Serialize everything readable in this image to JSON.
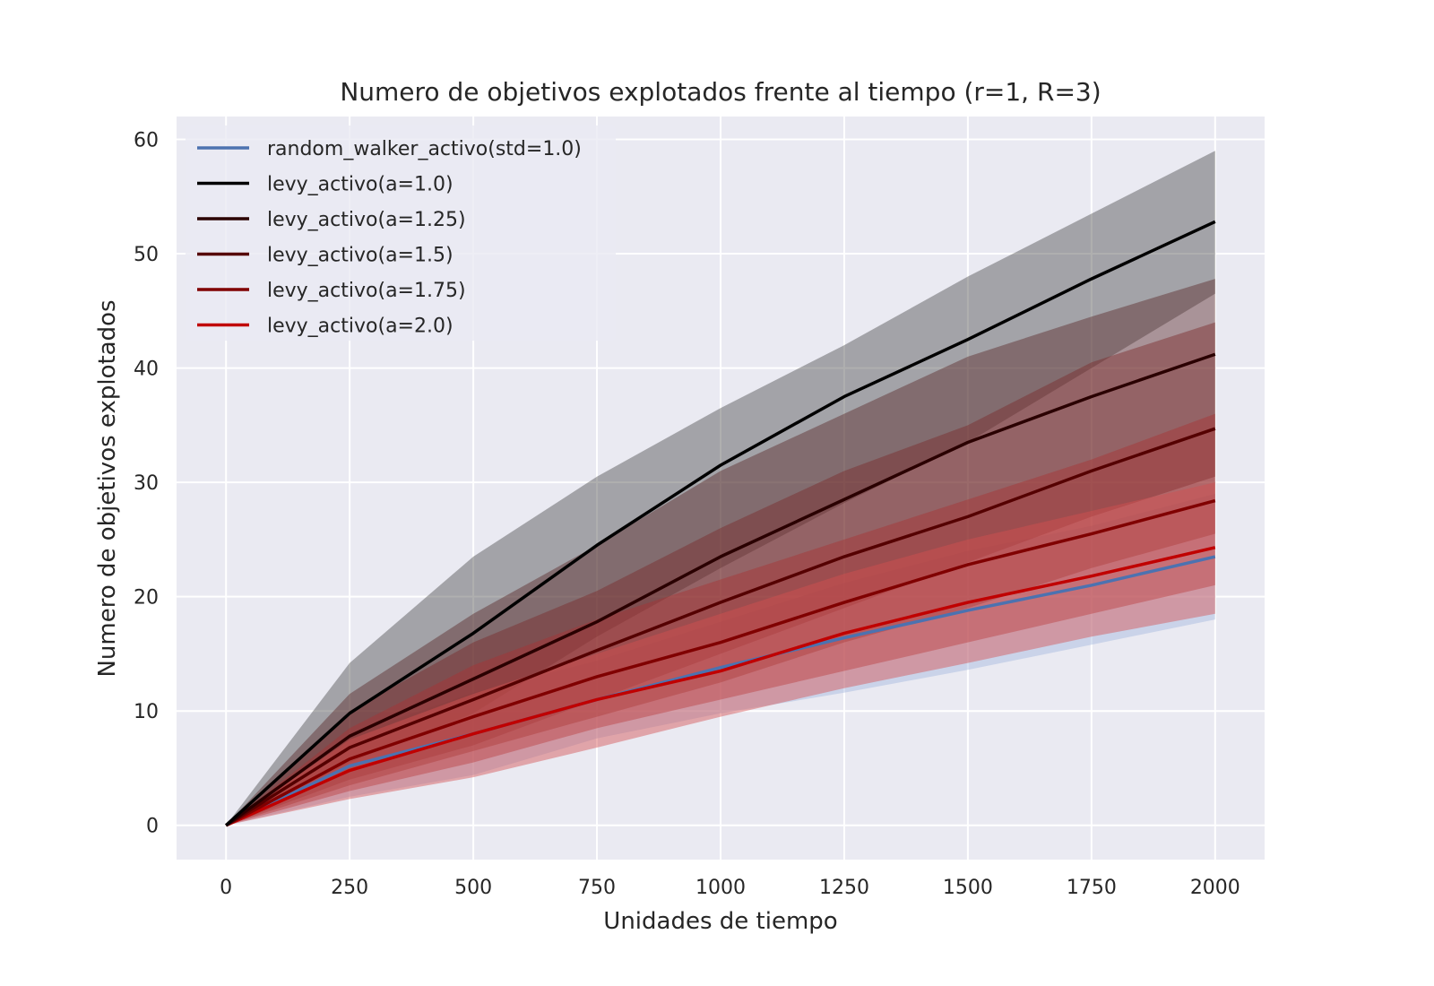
{
  "chart_data": {
    "type": "line",
    "title": "Numero de objetivos explotados frente al tiempo (r=1, R=3)",
    "xlabel": "Unidades de tiempo",
    "ylabel": "Numero de objetivos explotados",
    "xlim": [
      -100,
      2100
    ],
    "ylim": [
      -3,
      62
    ],
    "xticks": [
      0,
      250,
      500,
      750,
      1000,
      1250,
      1500,
      1750,
      2000
    ],
    "yticks": [
      0,
      10,
      20,
      30,
      40,
      50,
      60
    ],
    "grid": true,
    "legend_position": "upper-left",
    "plot_background": "#eaeaf2",
    "x": [
      0,
      250,
      500,
      750,
      1000,
      1250,
      1500,
      1750,
      2000
    ],
    "series": [
      {
        "name": "random_walker_activo(std=1.0)",
        "color": "#4c72b0",
        "band_color": "#a4b9dd",
        "values": [
          0,
          5.2,
          8.0,
          11.0,
          13.8,
          16.4,
          18.8,
          21.0,
          23.5
        ],
        "lower": [
          0,
          2.5,
          4.4,
          7.6,
          9.8,
          11.6,
          13.6,
          15.8,
          18.0
        ],
        "upper": [
          0,
          7.9,
          11.6,
          14.4,
          17.8,
          21.2,
          24.0,
          26.2,
          29.0
        ]
      },
      {
        "name": "levy_activo(a=1.0)",
        "color": "#000000",
        "band_color": "#4d4d4d",
        "values": [
          0,
          9.8,
          16.8,
          24.5,
          31.5,
          37.5,
          42.5,
          47.8,
          52.8
        ],
        "lower": [
          0,
          5.5,
          9.8,
          16.5,
          22.5,
          28.2,
          33.5,
          40.0,
          46.5
        ],
        "upper": [
          0,
          14.2,
          23.5,
          30.5,
          36.5,
          42.0,
          48.0,
          53.5,
          59.0
        ]
      },
      {
        "name": "levy_activo(a=1.25)",
        "color": "#2a0000",
        "band_color": "#5a2a2a",
        "values": [
          0,
          7.8,
          12.8,
          17.8,
          23.5,
          28.5,
          33.5,
          37.5,
          41.2
        ],
        "lower": [
          0,
          4.0,
          7.0,
          11.0,
          15.0,
          19.0,
          23.0,
          27.0,
          30.5
        ],
        "upper": [
          0,
          11.5,
          18.5,
          24.5,
          31.0,
          36.0,
          41.0,
          44.5,
          47.8
        ]
      },
      {
        "name": "levy_activo(a=1.5)",
        "color": "#550000",
        "band_color": "#7a2a2a",
        "values": [
          0,
          6.8,
          11.0,
          15.3,
          19.5,
          23.5,
          27.0,
          31.0,
          34.7
        ],
        "lower": [
          0,
          3.5,
          6.5,
          9.5,
          12.5,
          16.0,
          19.0,
          22.5,
          25.5
        ],
        "upper": [
          0,
          10.0,
          16.0,
          20.5,
          26.0,
          31.0,
          35.0,
          40.5,
          44.0
        ]
      },
      {
        "name": "levy_activo(a=1.75)",
        "color": "#800000",
        "band_color": "#a83232",
        "values": [
          0,
          5.8,
          9.5,
          13.0,
          16.0,
          19.5,
          22.8,
          25.5,
          28.4
        ],
        "lower": [
          0,
          3.0,
          5.5,
          8.5,
          11.0,
          13.5,
          16.0,
          18.5,
          21.0
        ],
        "upper": [
          0,
          8.5,
          14.0,
          18.0,
          21.5,
          25.0,
          28.5,
          32.0,
          36.0
        ]
      },
      {
        "name": "levy_activo(a=2.0)",
        "color": "#c00000",
        "band_color": "#d55050",
        "values": [
          0,
          4.8,
          8.0,
          11.0,
          13.5,
          16.8,
          19.5,
          21.8,
          24.3
        ],
        "lower": [
          0,
          2.3,
          4.2,
          6.8,
          9.5,
          12.0,
          14.2,
          16.5,
          18.5
        ],
        "upper": [
          0,
          7.5,
          11.5,
          15.0,
          18.5,
          22.0,
          25.0,
          27.5,
          30.0
        ]
      }
    ]
  }
}
